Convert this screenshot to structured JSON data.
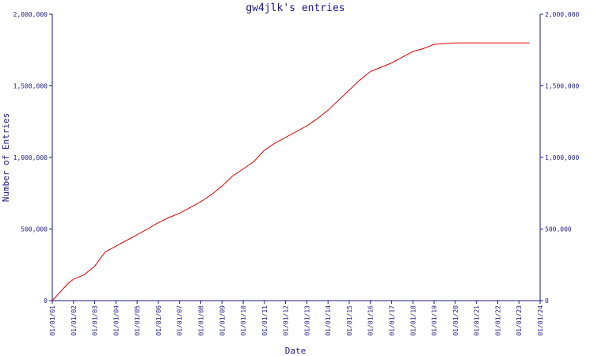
{
  "chart_data": {
    "type": "line",
    "title": "gw4jlk's entries",
    "xlabel": "Date",
    "ylabel": "Number of Entries",
    "x_tick_labels": [
      "01/01/01",
      "01/01/02",
      "01/01/03",
      "01/01/04",
      "01/01/05",
      "01/01/06",
      "01/01/07",
      "01/01/08",
      "01/01/09",
      "01/01/10",
      "01/01/11",
      "01/01/12",
      "01/01/13",
      "01/01/14",
      "01/01/15",
      "01/01/16",
      "01/01/17",
      "01/01/18",
      "01/01/19",
      "01/01/20",
      "01/01/21",
      "01/01/22",
      "01/01/23",
      "01/01/24"
    ],
    "y_tick_values": [
      0,
      500000,
      1000000,
      1500000,
      2000000
    ],
    "y_tick_labels": [
      "0",
      "500,000",
      "1,000,000",
      "1,500,000",
      "2,000,000"
    ],
    "xlim": [
      "2001-01-01",
      "2024-01-01"
    ],
    "ylim": [
      0,
      2000000
    ],
    "grid": false,
    "line_color": "#e00000",
    "axis_color": "#1a1a80",
    "series": [
      {
        "x": [
          "2001-01-01",
          "2001-04-01",
          "2001-07-01",
          "2001-10-01",
          "2002-01-01",
          "2002-07-01",
          "2003-01-01",
          "2003-07-01",
          "2004-01-01",
          "2004-07-01",
          "2005-01-01",
          "2005-07-01",
          "2006-01-01",
          "2006-07-01",
          "2007-01-01",
          "2007-07-01",
          "2008-01-01",
          "2008-07-01",
          "2009-01-01",
          "2009-07-01",
          "2010-01-01",
          "2010-07-01",
          "2011-01-01",
          "2011-07-01",
          "2012-01-01",
          "2012-07-01",
          "2013-01-01",
          "2013-07-01",
          "2014-01-01",
          "2014-07-01",
          "2015-01-01",
          "2015-07-01",
          "2016-01-01",
          "2016-07-01",
          "2017-01-01",
          "2017-07-01",
          "2018-01-01",
          "2018-07-01",
          "2019-01-01",
          "2019-07-01",
          "2020-01-01",
          "2021-01-01",
          "2022-01-01",
          "2023-01-01",
          "2023-07-01"
        ],
        "values": [
          0,
          40000,
          80000,
          120000,
          150000,
          180000,
          240000,
          340000,
          380000,
          420000,
          460000,
          500000,
          545000,
          580000,
          610000,
          650000,
          690000,
          740000,
          800000,
          870000,
          920000,
          970000,
          1050000,
          1100000,
          1140000,
          1180000,
          1220000,
          1270000,
          1330000,
          1400000,
          1470000,
          1540000,
          1600000,
          1630000,
          1660000,
          1700000,
          1740000,
          1760000,
          1790000,
          1795000,
          1800000,
          1800000,
          1800000,
          1800000,
          1800000
        ]
      }
    ]
  }
}
